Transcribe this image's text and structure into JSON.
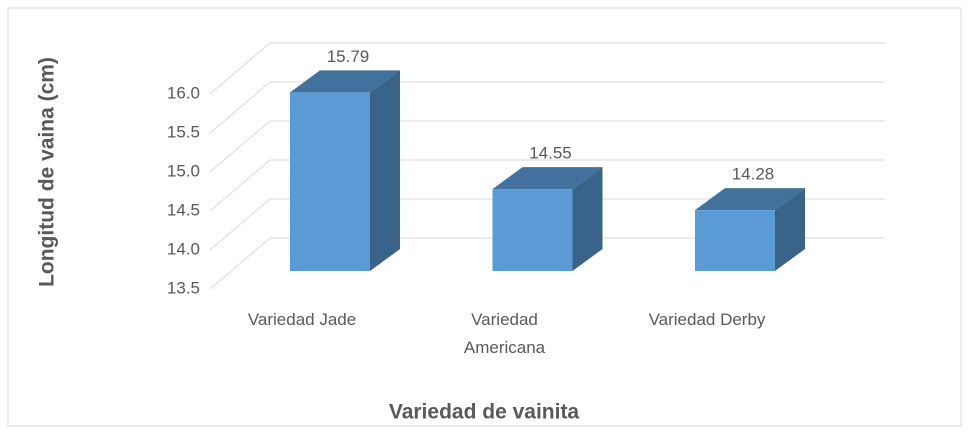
{
  "chart_data": {
    "type": "bar3d",
    "x_label": "Variedad de vainita",
    "y_label": "Longitud de vaina (cm)",
    "categories": [
      "Variedad Jade",
      "Variedad Americana",
      "Variedad Derby"
    ],
    "values": [
      15.79,
      14.55,
      14.28
    ],
    "color": "#5b9bd5",
    "ylim": [
      13.5,
      16.0
    ],
    "yticks": [
      13.5,
      {
        "value": 14.0,
        "label": "14.0"
      },
      14.5,
      {
        "value": 15.0,
        "label": "15.0"
      },
      15.5,
      {
        "value": 16.0,
        "label": "16.0"
      }
    ],
    "grid": true
  }
}
